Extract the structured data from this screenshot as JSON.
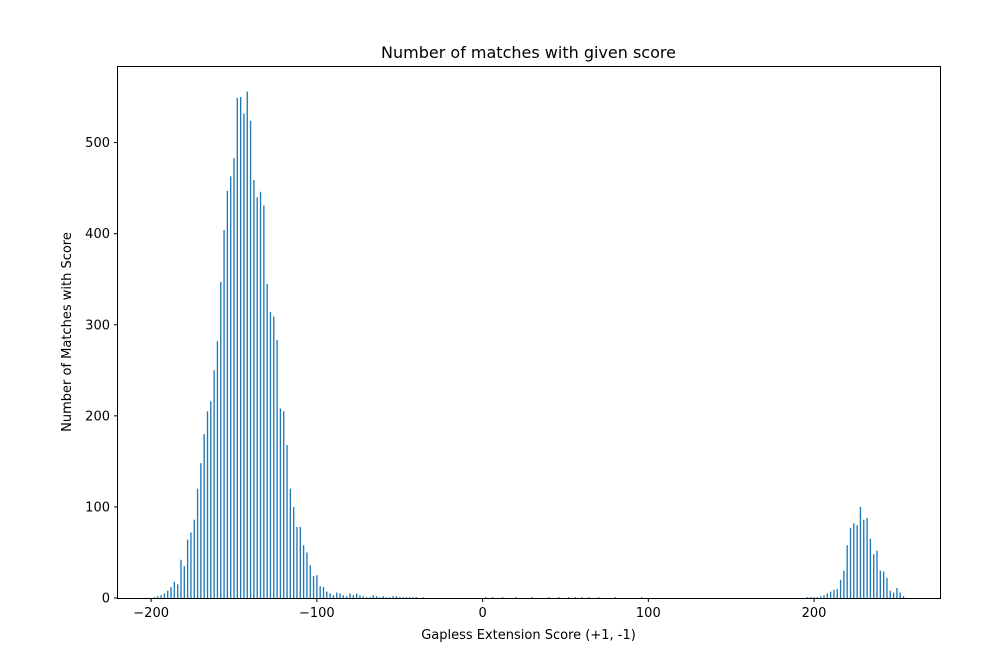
{
  "chart_data": {
    "type": "bar",
    "title": "Number of matches with given score",
    "xlabel": "Gapless Extension Score (+1, -1)",
    "ylabel": "Number of Matches with Score",
    "xlim": [
      -220,
      276
    ],
    "ylim": [
      0,
      583
    ],
    "grid": false,
    "bar_width": 0.8,
    "bar_color": "#1f77b4",
    "x_ticks": [
      -200,
      -100,
      0,
      100,
      200
    ],
    "x_tick_labels": [
      "−200",
      "−100",
      "0",
      "100",
      "200"
    ],
    "y_ticks": [
      0,
      100,
      200,
      300,
      400,
      500
    ],
    "y_tick_labels": [
      "0",
      "100",
      "200",
      "300",
      "400",
      "500"
    ],
    "series": [
      {
        "name": "matches",
        "points": [
          [
            -198,
            1
          ],
          [
            -196,
            2
          ],
          [
            -194,
            3
          ],
          [
            -192,
            5
          ],
          [
            -190,
            8
          ],
          [
            -188,
            12
          ],
          [
            -186,
            18
          ],
          [
            -184,
            15
          ],
          [
            -182,
            42
          ],
          [
            -180,
            35
          ],
          [
            -178,
            64
          ],
          [
            -176,
            72
          ],
          [
            -174,
            86
          ],
          [
            -172,
            120
          ],
          [
            -170,
            148
          ],
          [
            -168,
            180
          ],
          [
            -166,
            205
          ],
          [
            -164,
            216
          ],
          [
            -162,
            250
          ],
          [
            -160,
            282
          ],
          [
            -158,
            347
          ],
          [
            -156,
            404
          ],
          [
            -154,
            447
          ],
          [
            -152,
            463
          ],
          [
            -150,
            483
          ],
          [
            -148,
            549
          ],
          [
            -146,
            550
          ],
          [
            -144,
            532
          ],
          [
            -142,
            556
          ],
          [
            -140,
            524
          ],
          [
            -138,
            459
          ],
          [
            -136,
            440
          ],
          [
            -134,
            446
          ],
          [
            -132,
            431
          ],
          [
            -130,
            345
          ],
          [
            -128,
            314
          ],
          [
            -126,
            309
          ],
          [
            -124,
            283
          ],
          [
            -122,
            208
          ],
          [
            -120,
            205
          ],
          [
            -118,
            168
          ],
          [
            -116,
            120
          ],
          [
            -114,
            100
          ],
          [
            -112,
            78
          ],
          [
            -110,
            78
          ],
          [
            -108,
            58
          ],
          [
            -106,
            50
          ],
          [
            -104,
            36
          ],
          [
            -102,
            24
          ],
          [
            -100,
            25
          ],
          [
            -98,
            13
          ],
          [
            -96,
            12
          ],
          [
            -94,
            7
          ],
          [
            -92,
            5
          ],
          [
            -90,
            3
          ],
          [
            -88,
            6
          ],
          [
            -86,
            5
          ],
          [
            -84,
            3
          ],
          [
            -82,
            2
          ],
          [
            -80,
            5
          ],
          [
            -78,
            3
          ],
          [
            -76,
            5
          ],
          [
            -74,
            3
          ],
          [
            -72,
            2
          ],
          [
            -70,
            1
          ],
          [
            -68,
            1
          ],
          [
            -66,
            3
          ],
          [
            -64,
            2
          ],
          [
            -62,
            1
          ],
          [
            -60,
            2
          ],
          [
            -58,
            1
          ],
          [
            -56,
            1
          ],
          [
            -54,
            2
          ],
          [
            -52,
            2
          ],
          [
            -50,
            1
          ],
          [
            -48,
            1
          ],
          [
            -46,
            1
          ],
          [
            -44,
            1
          ],
          [
            -42,
            1
          ],
          [
            -40,
            1
          ],
          [
            -36,
            1
          ],
          [
            2,
            1
          ],
          [
            6,
            1
          ],
          [
            12,
            1
          ],
          [
            20,
            1
          ],
          [
            30,
            1
          ],
          [
            40,
            1
          ],
          [
            46,
            1
          ],
          [
            52,
            1
          ],
          [
            56,
            1
          ],
          [
            60,
            1
          ],
          [
            64,
            1
          ],
          [
            70,
            1
          ],
          [
            80,
            1
          ],
          [
            96,
            1
          ],
          [
            196,
            1
          ],
          [
            198,
            1
          ],
          [
            200,
            1
          ],
          [
            202,
            1
          ],
          [
            204,
            2
          ],
          [
            206,
            3
          ],
          [
            208,
            5
          ],
          [
            210,
            7
          ],
          [
            212,
            9
          ],
          [
            214,
            10
          ],
          [
            216,
            20
          ],
          [
            218,
            30
          ],
          [
            220,
            58
          ],
          [
            222,
            77
          ],
          [
            224,
            82
          ],
          [
            226,
            80
          ],
          [
            228,
            100
          ],
          [
            230,
            86
          ],
          [
            232,
            88
          ],
          [
            234,
            65
          ],
          [
            236,
            48
          ],
          [
            238,
            52
          ],
          [
            240,
            30
          ],
          [
            242,
            29
          ],
          [
            244,
            22
          ],
          [
            246,
            8
          ],
          [
            248,
            6
          ],
          [
            250,
            11
          ],
          [
            252,
            6
          ],
          [
            254,
            2
          ]
        ]
      }
    ]
  }
}
